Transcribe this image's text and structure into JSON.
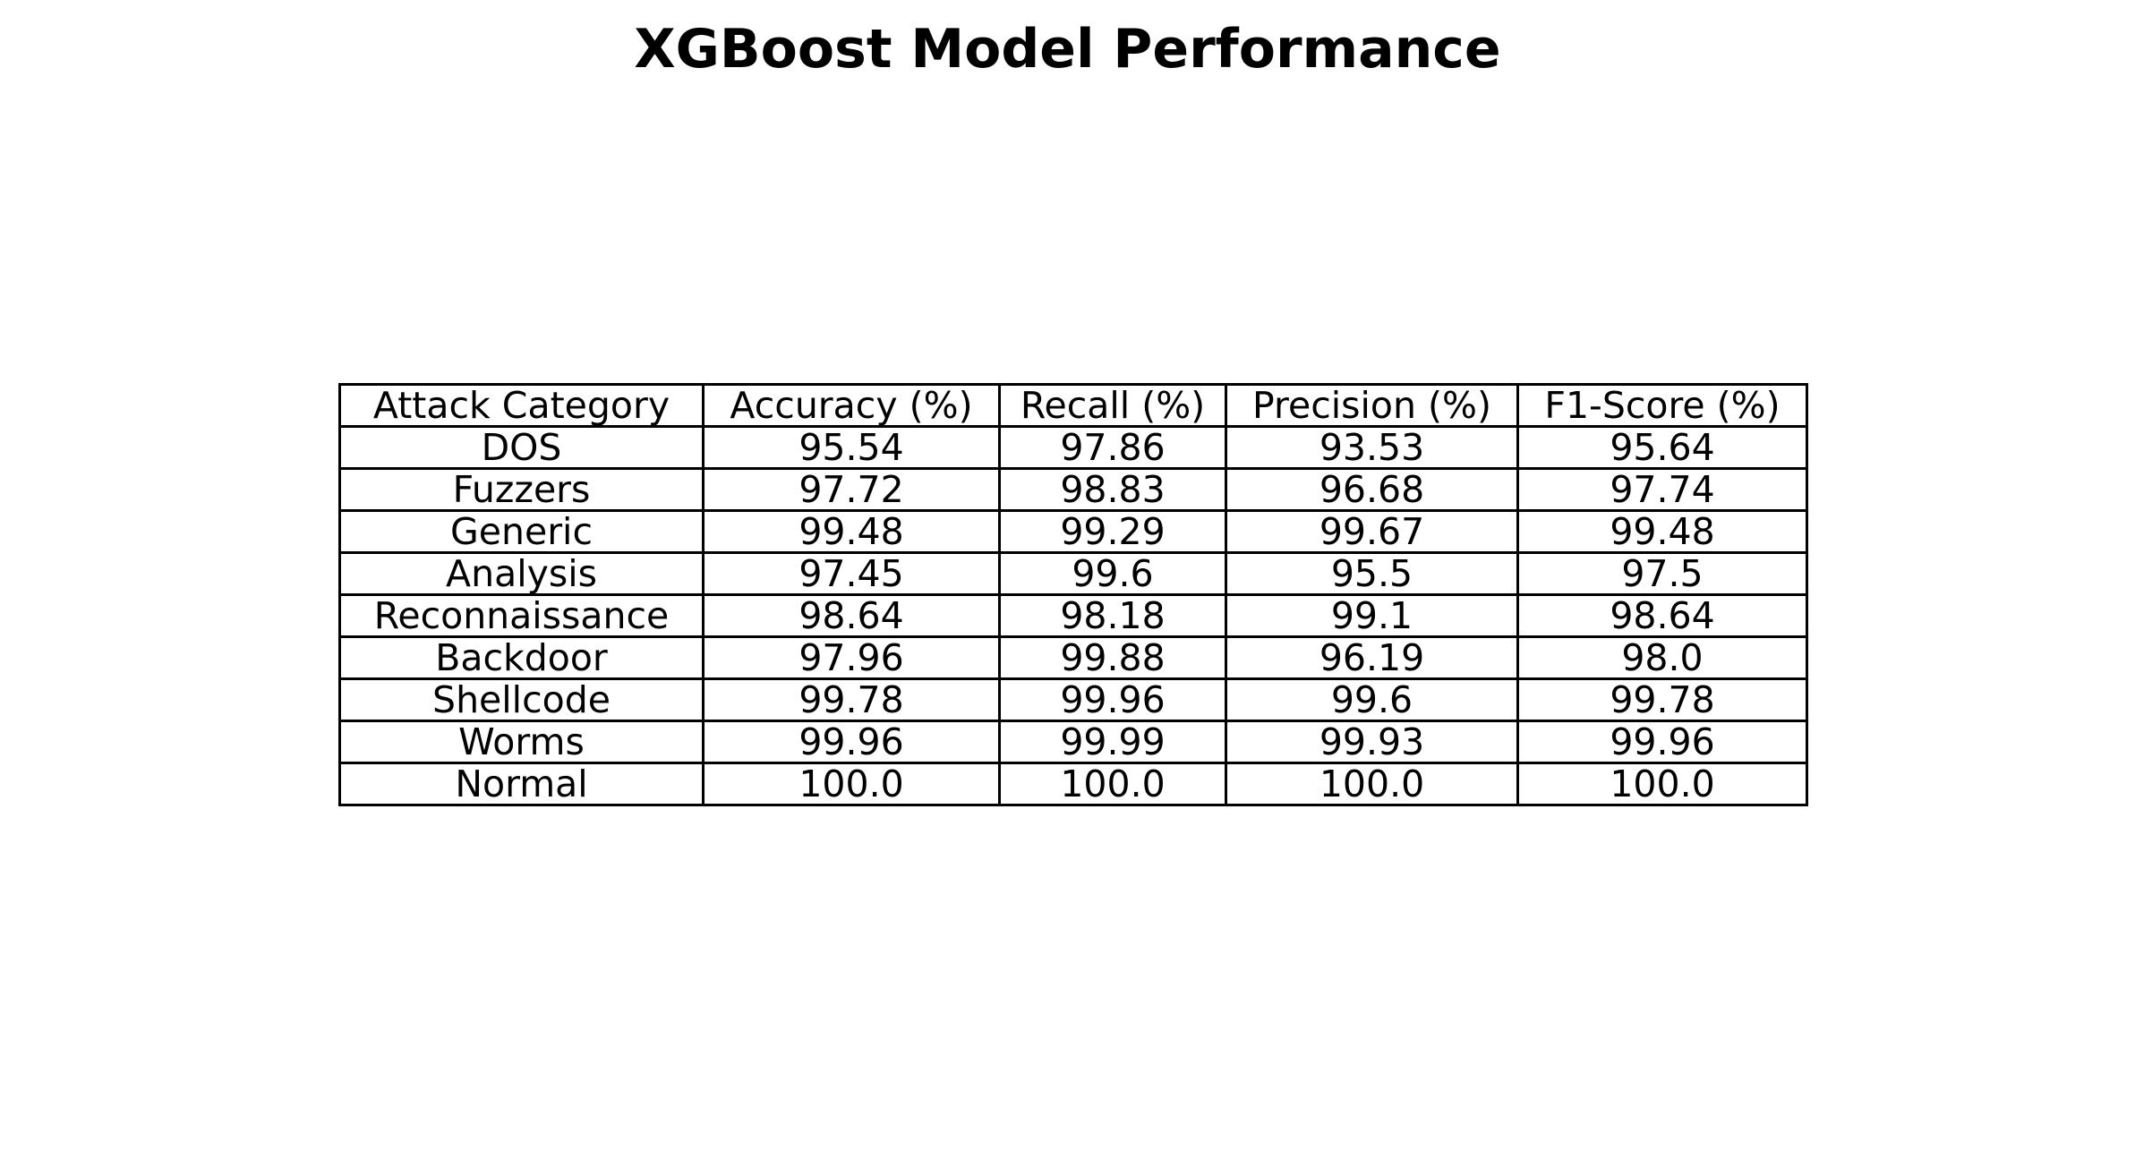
{
  "chart_data": {
    "type": "table",
    "title": "XGBoost Model Performance",
    "columns": [
      "Attack Category",
      "Accuracy (%)",
      "Recall (%)",
      "Precision (%)",
      "F1-Score (%)"
    ],
    "rows": [
      [
        "DOS",
        "95.54",
        "97.86",
        "93.53",
        "95.64"
      ],
      [
        "Fuzzers",
        "97.72",
        "98.83",
        "96.68",
        "97.74"
      ],
      [
        "Generic",
        "99.48",
        "99.29",
        "99.67",
        "99.48"
      ],
      [
        "Analysis",
        "97.45",
        "99.6",
        "95.5",
        "97.5"
      ],
      [
        "Reconnaissance",
        "98.64",
        "98.18",
        "99.1",
        "98.64"
      ],
      [
        "Backdoor",
        "97.96",
        "99.88",
        "96.19",
        "98.0"
      ],
      [
        "Shellcode",
        "99.78",
        "99.96",
        "99.6",
        "99.78"
      ],
      [
        "Worms",
        "99.96",
        "99.99",
        "99.93",
        "99.96"
      ],
      [
        "Normal",
        "100.0",
        "100.0",
        "100.0",
        "100.0"
      ]
    ]
  }
}
